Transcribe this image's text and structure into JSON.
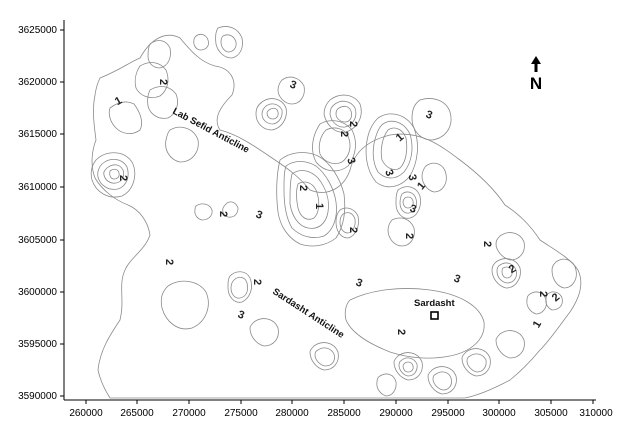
{
  "map": {
    "north_arrow": "N",
    "x_ticks": [
      "260000",
      "265000",
      "270000",
      "275000",
      "280000",
      "285000",
      "290000",
      "295000",
      "300000",
      "305000",
      "310000"
    ],
    "y_ticks": [
      "3625000",
      "3620000",
      "3615000",
      "3610000",
      "3605000",
      "3600000",
      "3595000",
      "3590000"
    ],
    "features": {
      "lab_sefid": "Lab Sefid Anticline",
      "sardasht_anticline": "Sardasht Anticline",
      "sardasht_town": "Sardasht"
    },
    "contour_labels": [
      "2",
      "1",
      "3",
      "3",
      "2",
      "2",
      "3",
      "1",
      "3",
      "3",
      "1",
      "2",
      "1",
      "2",
      "2",
      "3",
      "2",
      "3",
      "2",
      "3",
      "3",
      "2",
      "2",
      "3",
      "2",
      "2",
      "2",
      "1",
      "2",
      "2"
    ],
    "colors": {
      "contour": "#8a8a8a",
      "axis": "#000000"
    }
  }
}
